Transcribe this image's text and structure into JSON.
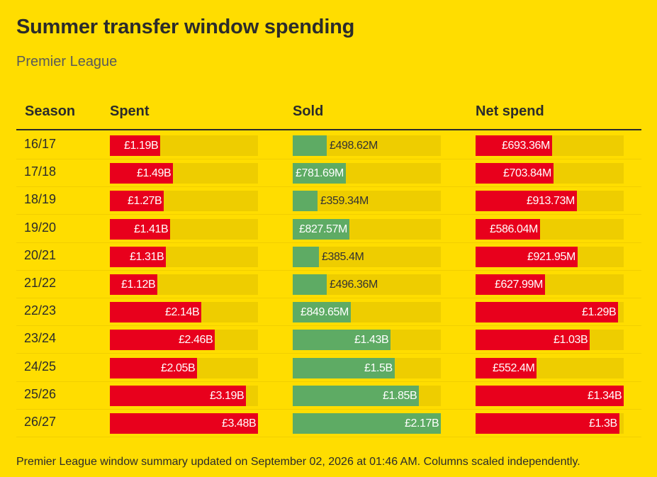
{
  "title": "Summer transfer window spending",
  "subtitle": "Premier League",
  "headers": {
    "season": "Season",
    "spent": "Spent",
    "sold": "Sold",
    "net": "Net spend"
  },
  "footer": "Premier League window summary updated on September 02, 2026 at 01:46 AM. Columns scaled independently.",
  "colors": {
    "background": "#ffdd00",
    "spent": "#e8001c",
    "sold": "#5eab64",
    "net": "#e8001c",
    "track": "#eecd00"
  },
  "chart_data": {
    "type": "bar",
    "title": "Summer transfer window spending",
    "subtitle": "Premier League",
    "categories": [
      "16/17",
      "17/18",
      "18/19",
      "19/20",
      "20/21",
      "21/22",
      "22/23",
      "23/24",
      "24/25",
      "25/26",
      "26/27"
    ],
    "series": [
      {
        "name": "Spent",
        "unit": "£M",
        "values": [
          1190,
          1490,
          1270,
          1410,
          1310,
          1120,
          2140,
          2460,
          2050,
          3190,
          3480
        ],
        "labels": [
          "£1.19B",
          "£1.49B",
          "£1.27B",
          "£1.41B",
          "£1.31B",
          "£1.12B",
          "£2.14B",
          "£2.46B",
          "£2.05B",
          "£3.19B",
          "£3.48B"
        ]
      },
      {
        "name": "Sold",
        "unit": "£M",
        "values": [
          498.62,
          781.69,
          359.34,
          827.57,
          385.4,
          496.36,
          849.65,
          1430,
          1500,
          1850,
          2170
        ],
        "labels": [
          "£498.62M",
          "£781.69M",
          "£359.34M",
          "£827.57M",
          "£385.4M",
          "£496.36M",
          "£849.65M",
          "£1.43B",
          "£1.5B",
          "£1.85B",
          "£2.17B"
        ]
      },
      {
        "name": "Net spend",
        "unit": "£M",
        "values": [
          693.36,
          703.84,
          913.73,
          586.04,
          921.95,
          627.99,
          1290,
          1030,
          552.4,
          1340,
          1300
        ],
        "labels": [
          "£693.36M",
          "£703.84M",
          "£913.73M",
          "£586.04M",
          "£921.95M",
          "£627.99M",
          "£1.29B",
          "£1.03B",
          "£552.4M",
          "£1.34B",
          "£1.3B"
        ]
      }
    ],
    "scaling": "independent"
  }
}
